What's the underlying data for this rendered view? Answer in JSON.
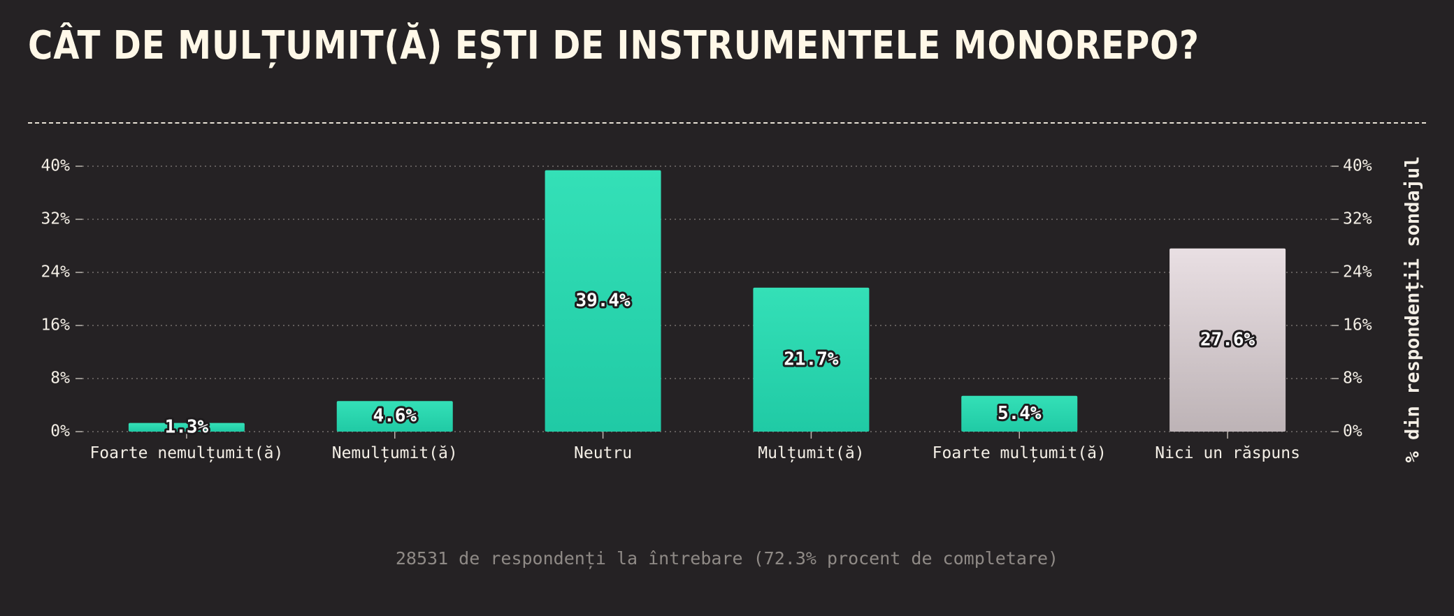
{
  "title": "CÂT DE MULȚUMIT(Ă) EȘTI DE INSTRUMENTELE MONOREPO?",
  "footnote": "28531 de respondenți la întrebare (72.3% procent de completare)",
  "colors": {
    "background": "#252224",
    "accent": "#2fdcb4",
    "accent_dark": "#22cca6",
    "neutral": "#e6dadf",
    "neutral_dark": "#bfb5b8",
    "text": "#f4efe6",
    "muted": "#8f8a86"
  },
  "chart_data": {
    "type": "bar",
    "categories": [
      "Foarte nemulțumit(ă)",
      "Nemulțumit(ă)",
      "Neutru",
      "Mulțumit(ă)",
      "Foarte mulțumit(ă)",
      "Nici un răspuns"
    ],
    "values": [
      1.3,
      4.6,
      39.4,
      21.7,
      5.4,
      27.6
    ],
    "value_labels": [
      "1.3%",
      "4.6%",
      "39.4%",
      "21.7%",
      "5.4%",
      "27.6%"
    ],
    "bar_colors": [
      "accent",
      "accent",
      "accent",
      "accent",
      "accent",
      "neutral"
    ],
    "ylim": [
      0,
      40
    ],
    "yticks": [
      0,
      8,
      16,
      24,
      32,
      40
    ],
    "ytick_labels": [
      "0%",
      "8%",
      "16%",
      "24%",
      "32%",
      "40%"
    ],
    "ylabel_right": "% din respondenții sondajul",
    "grid": true,
    "grid_style": "dotted"
  }
}
